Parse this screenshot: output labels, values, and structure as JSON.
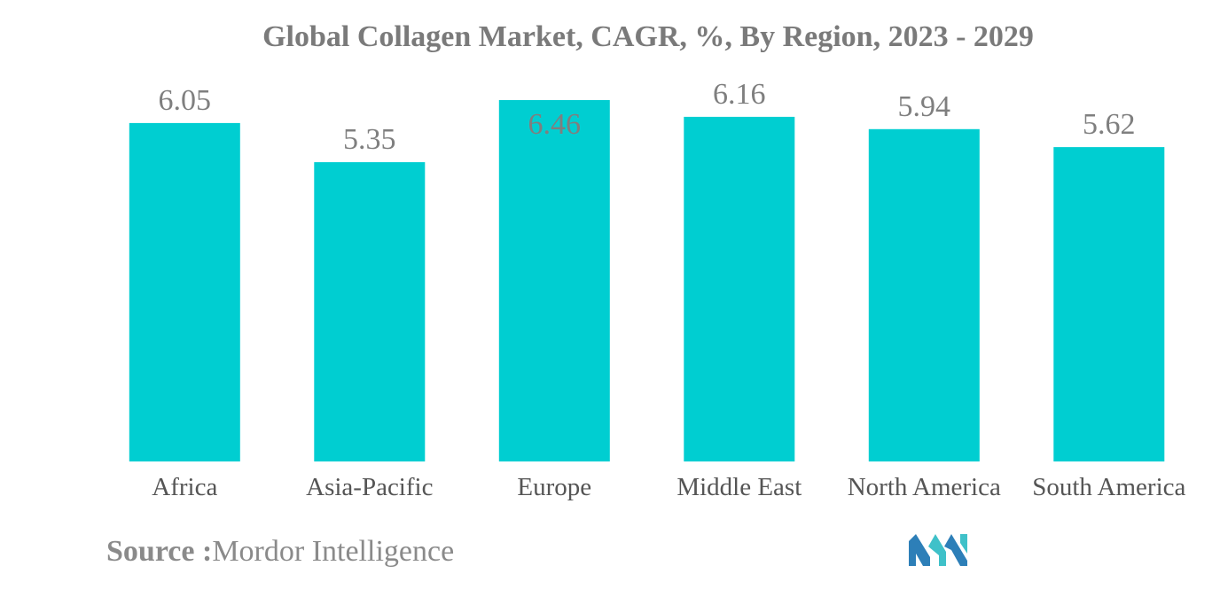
{
  "chart_data": {
    "type": "bar",
    "title": "Global Collagen Market, CAGR, %, By Region, 2023 - 2029",
    "categories": [
      "Africa",
      "Asia-Pacific",
      "Europe",
      "Middle East",
      "North America",
      "South America"
    ],
    "values": [
      6.05,
      5.35,
      6.46,
      6.16,
      5.94,
      5.62
    ],
    "value_labels": [
      "6.05",
      "5.35",
      "6.46",
      "6.16",
      "5.94",
      "5.62"
    ],
    "xlabel": "",
    "ylabel": "",
    "ylim": [
      0,
      6.46
    ],
    "grid": false,
    "legend": "none",
    "bar_color": "#00ced1"
  },
  "source": {
    "label": "Source :",
    "text": "Mordor Intelligence"
  },
  "logo": {
    "icon": "mordor-intelligence-logo-icon",
    "colors": [
      "#2d7fb8",
      "#3fc1c9"
    ]
  }
}
